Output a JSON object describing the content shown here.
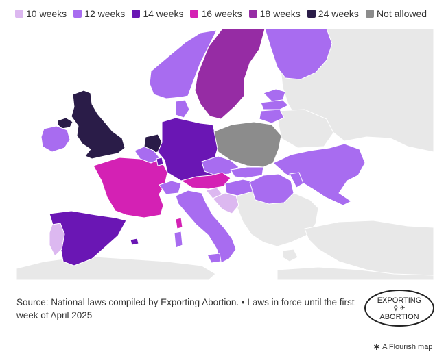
{
  "legend": [
    {
      "label": "10 weeks",
      "color": "#dcb8f0"
    },
    {
      "label": "12 weeks",
      "color": "#a86cf0"
    },
    {
      "label": "14 weeks",
      "color": "#6a16b4"
    },
    {
      "label": "16 weeks",
      "color": "#d421b4"
    },
    {
      "label": "18 weeks",
      "color": "#962ca4"
    },
    {
      "label": "24 weeks",
      "color": "#2a1c48"
    },
    {
      "label": "Not allowed",
      "color": "#8c8c8c"
    }
  ],
  "other_color": "#e8e8e8",
  "map": {
    "countries": [
      {
        "name": "United Kingdom",
        "category": "24 weeks"
      },
      {
        "name": "Northern Ireland",
        "category": "24 weeks"
      },
      {
        "name": "Netherlands",
        "category": "24 weeks"
      },
      {
        "name": "Ireland",
        "category": "12 weeks"
      },
      {
        "name": "Norway",
        "category": "12 weeks"
      },
      {
        "name": "Sweden",
        "category": "18 weeks"
      },
      {
        "name": "Finland",
        "category": "12 weeks"
      },
      {
        "name": "Denmark",
        "category": "12 weeks"
      },
      {
        "name": "Estonia",
        "category": "12 weeks"
      },
      {
        "name": "Latvia",
        "category": "12 weeks"
      },
      {
        "name": "Lithuania",
        "category": "12 weeks"
      },
      {
        "name": "Germany",
        "category": "14 weeks"
      },
      {
        "name": "Belgium",
        "category": "12 weeks"
      },
      {
        "name": "France",
        "category": "16 weeks"
      },
      {
        "name": "Spain",
        "category": "14 weeks"
      },
      {
        "name": "Portugal",
        "category": "10 weeks"
      },
      {
        "name": "Poland",
        "category": "Not allowed"
      },
      {
        "name": "Czechia",
        "category": "12 weeks"
      },
      {
        "name": "Slovakia",
        "category": "12 weeks"
      },
      {
        "name": "Austria",
        "category": "16 weeks"
      },
      {
        "name": "Switzerland",
        "category": "12 weeks"
      },
      {
        "name": "Italy",
        "category": "12 weeks"
      },
      {
        "name": "Sardinia",
        "category": "12 weeks"
      },
      {
        "name": "Sicily",
        "category": "12 weeks"
      },
      {
        "name": "Corsica",
        "category": "16 weeks"
      },
      {
        "name": "Slovenia",
        "category": "10 weeks"
      },
      {
        "name": "Croatia",
        "category": "10 weeks"
      },
      {
        "name": "Hungary",
        "category": "12 weeks"
      },
      {
        "name": "Romania",
        "category": "12 weeks"
      },
      {
        "name": "Ukraine",
        "category": "12 weeks"
      },
      {
        "name": "Moldova",
        "category": "12 weeks"
      },
      {
        "name": "Luxembourg",
        "category": "14 weeks"
      },
      {
        "name": "Mallorca",
        "category": "14 weeks"
      }
    ]
  },
  "source_text": "Source: National laws compiled by Exporting Abortion. • Laws in force until the first week of April 2025",
  "logo": {
    "top_text": "EXPORTING",
    "bottom_text": "ABORTION",
    "symbols": "♀ ✈"
  },
  "flourish_label": "A Flourish map",
  "flourish_icon": "✱"
}
